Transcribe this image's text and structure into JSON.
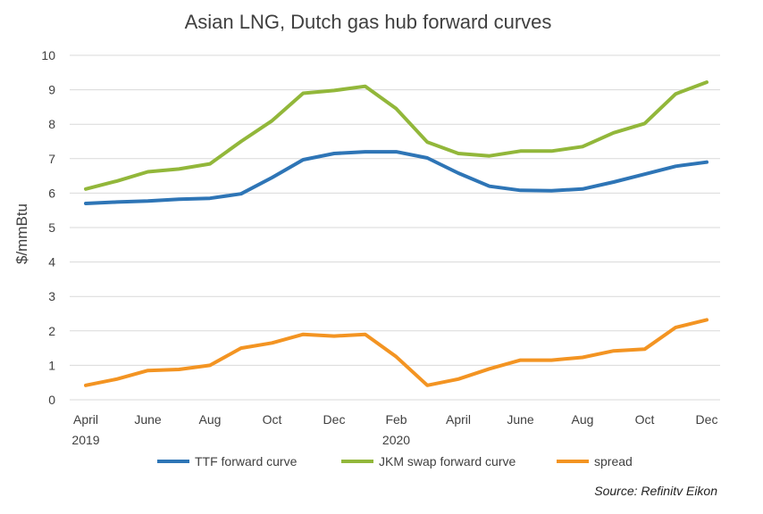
{
  "chart_data": {
    "type": "line",
    "title": "Asian LNG, Dutch gas hub forward curves",
    "ylabel": "$/mmBtu",
    "xlabel": "",
    "ylim": [
      0,
      10
    ],
    "yticks": [
      0,
      1,
      2,
      3,
      4,
      5,
      6,
      7,
      8,
      9,
      10
    ],
    "grid": true,
    "legend_position": "bottom",
    "x": [
      "Apr 2019",
      "May 2019",
      "Jun 2019",
      "Jul 2019",
      "Aug 2019",
      "Sep 2019",
      "Oct 2019",
      "Nov 2019",
      "Dec 2019",
      "Jan 2020",
      "Feb 2020",
      "Mar 2020",
      "Apr 2020",
      "May 2020",
      "Jun 2020",
      "Jul 2020",
      "Aug 2020",
      "Sep 2020",
      "Oct 2020",
      "Nov 2020",
      "Dec 2020"
    ],
    "x_tick_labels": [
      {
        "label": "April",
        "sub": "2019"
      },
      {
        "label": "",
        "sub": ""
      },
      {
        "label": "June",
        "sub": ""
      },
      {
        "label": "",
        "sub": ""
      },
      {
        "label": "Aug",
        "sub": ""
      },
      {
        "label": "",
        "sub": ""
      },
      {
        "label": "Oct",
        "sub": ""
      },
      {
        "label": "",
        "sub": ""
      },
      {
        "label": "Dec",
        "sub": ""
      },
      {
        "label": "",
        "sub": ""
      },
      {
        "label": "Feb",
        "sub": "2020"
      },
      {
        "label": "",
        "sub": ""
      },
      {
        "label": "April",
        "sub": ""
      },
      {
        "label": "",
        "sub": ""
      },
      {
        "label": "June",
        "sub": ""
      },
      {
        "label": "",
        "sub": ""
      },
      {
        "label": "Aug",
        "sub": ""
      },
      {
        "label": "",
        "sub": ""
      },
      {
        "label": "Oct",
        "sub": ""
      },
      {
        "label": "",
        "sub": ""
      },
      {
        "label": "Dec",
        "sub": ""
      }
    ],
    "series": [
      {
        "name": "TTF forward curve",
        "color": "#2e75b6",
        "values": [
          5.7,
          5.74,
          5.77,
          5.82,
          5.85,
          5.98,
          6.45,
          6.97,
          7.15,
          7.2,
          7.2,
          7.02,
          6.58,
          6.2,
          6.08,
          6.07,
          6.12,
          6.32,
          6.55,
          6.78,
          6.9
        ]
      },
      {
        "name": "JKM swap forward curve",
        "color": "#92b73a",
        "values": [
          6.12,
          6.35,
          6.62,
          6.7,
          6.85,
          7.5,
          8.1,
          8.9,
          8.98,
          9.1,
          8.45,
          7.48,
          7.15,
          7.08,
          7.22,
          7.22,
          7.35,
          7.75,
          8.02,
          8.88,
          9.22
        ]
      },
      {
        "name": "spread",
        "color": "#f39422",
        "values": [
          0.42,
          0.6,
          0.85,
          0.88,
          1.0,
          1.5,
          1.65,
          1.9,
          1.85,
          1.9,
          1.25,
          0.42,
          0.6,
          0.9,
          1.15,
          1.15,
          1.23,
          1.42,
          1.47,
          2.1,
          2.32
        ]
      }
    ]
  },
  "source": "Source: Refinitv Eikon"
}
